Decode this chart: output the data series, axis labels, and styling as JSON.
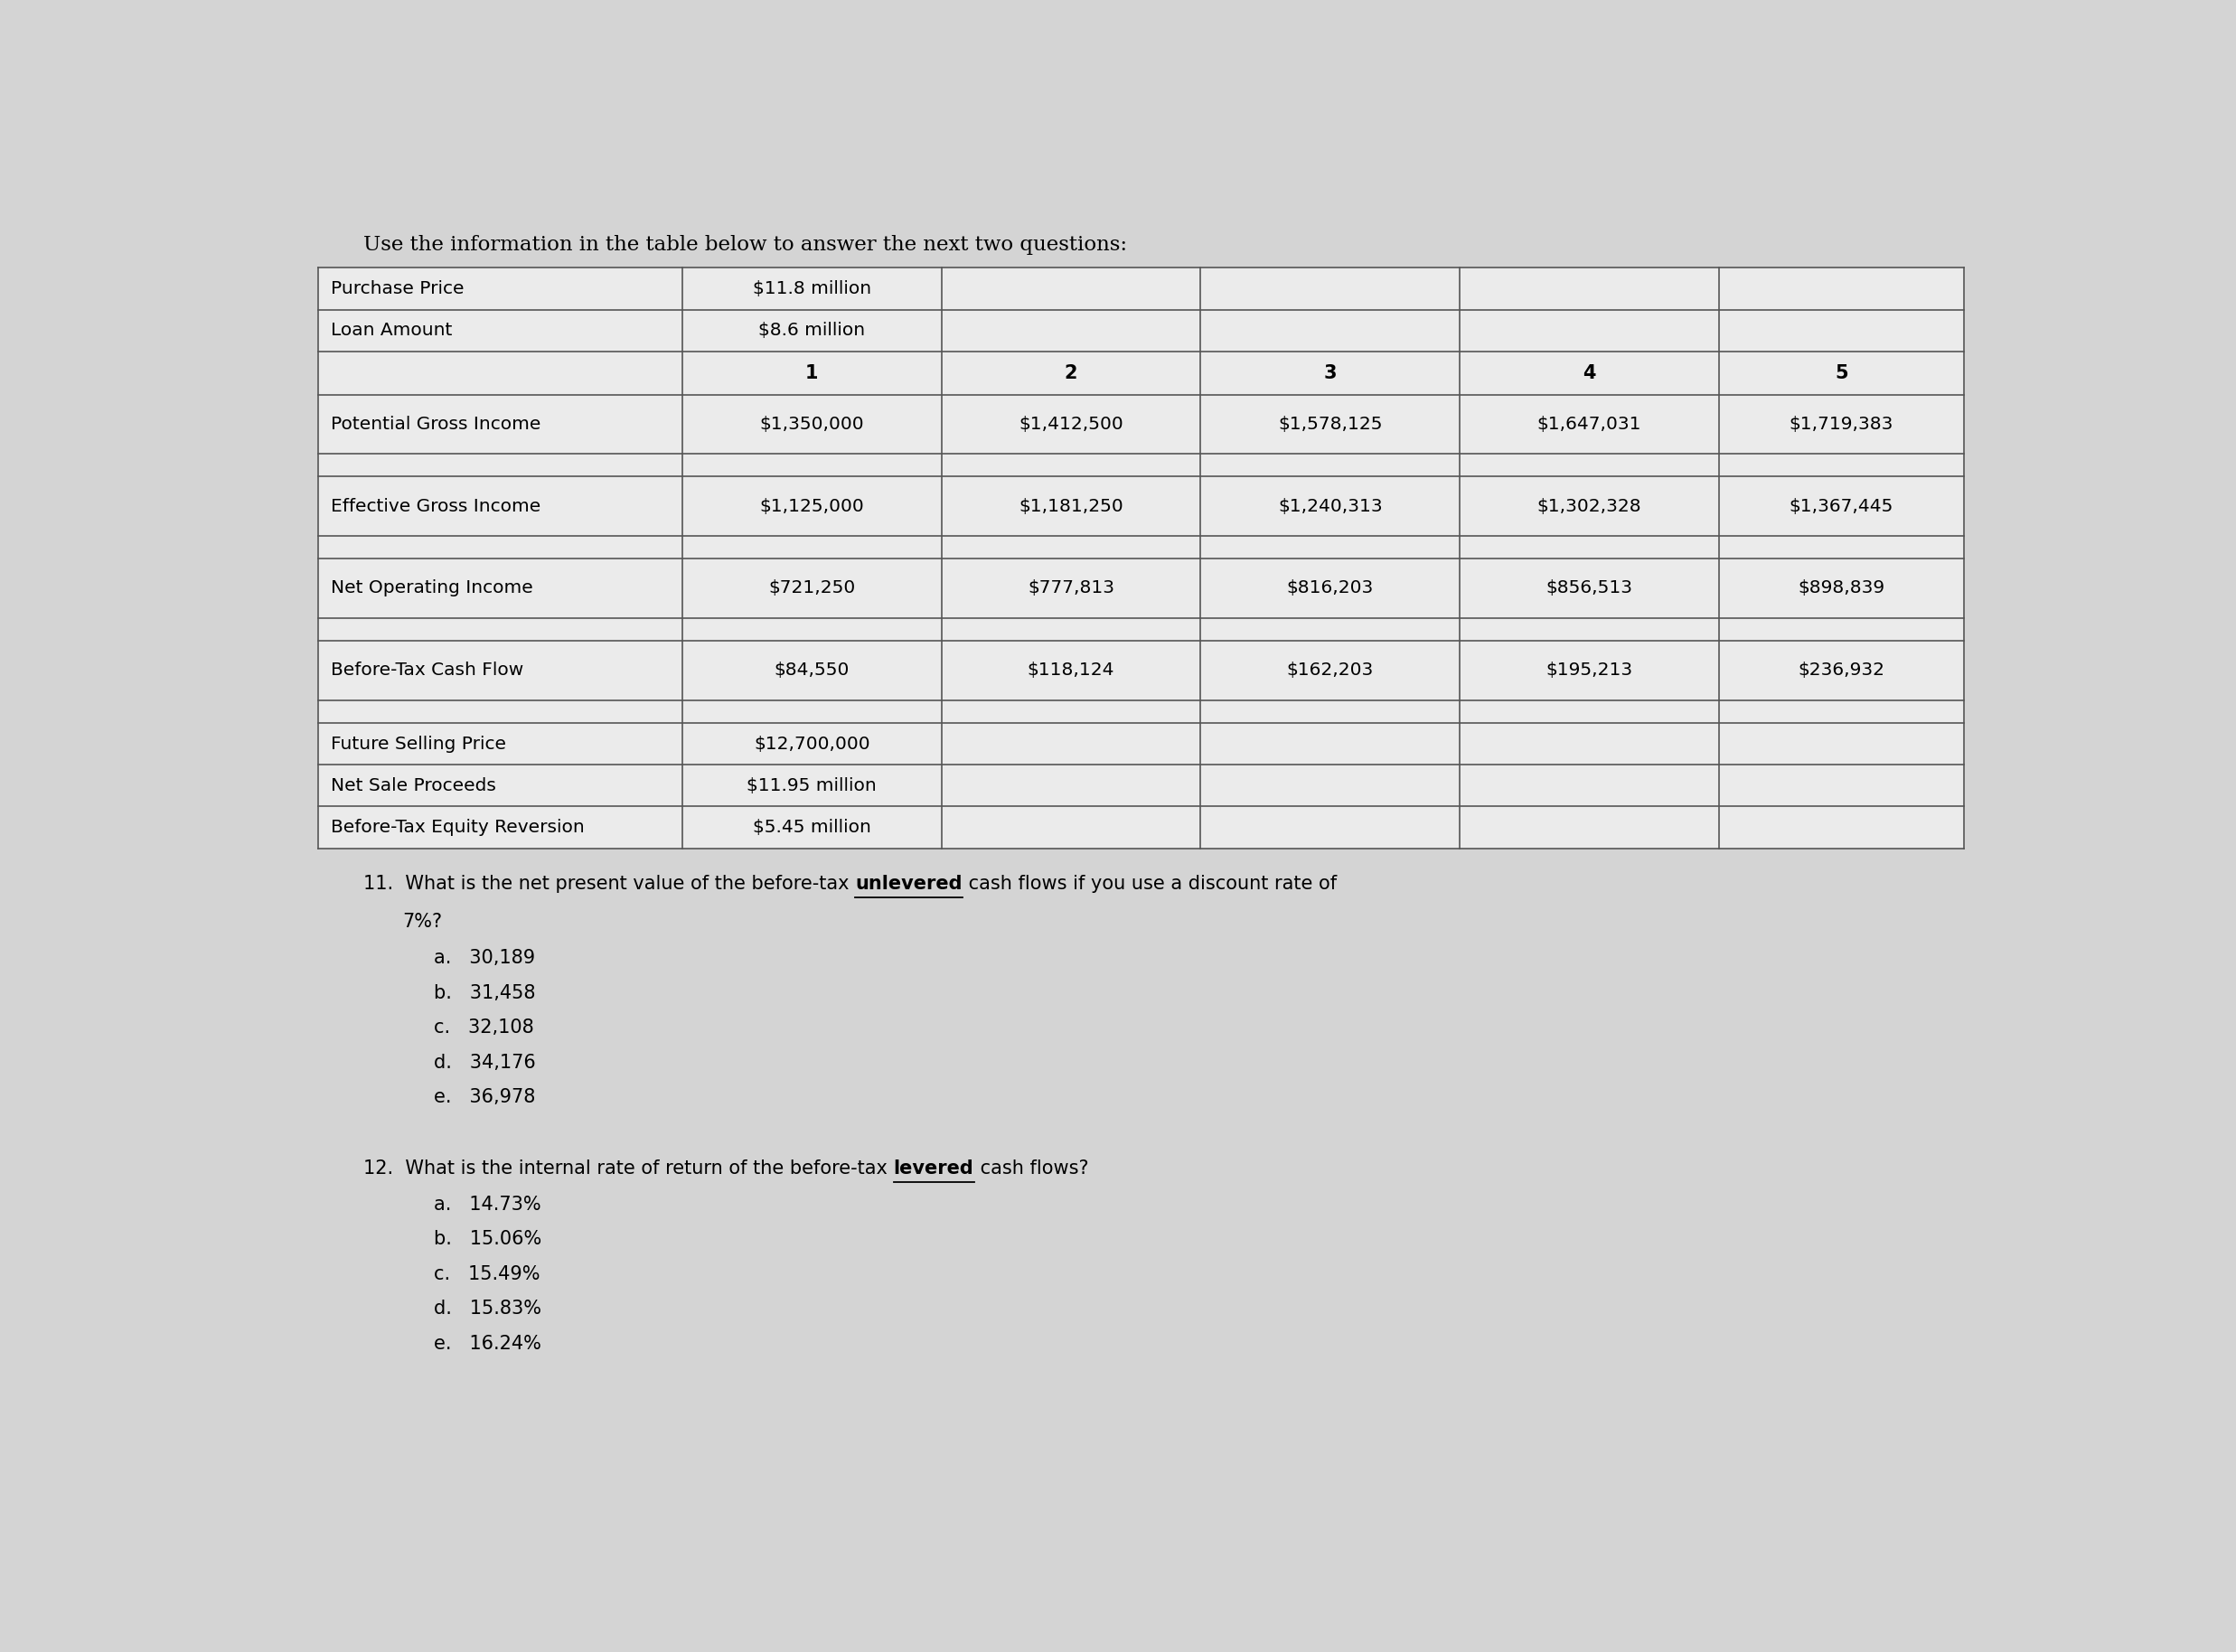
{
  "title": "Use the information in the table below to answer the next two questions:",
  "bg_color": "#d4d4d4",
  "table_bg": "#e8e8e8",
  "table_line_color": "#555555",
  "header_rows": [
    [
      "Purchase Price",
      "$11.8 million",
      "",
      "",
      "",
      ""
    ],
    [
      "Loan Amount",
      "$8.6 million",
      "",
      "",
      "",
      ""
    ],
    [
      "",
      "1",
      "2",
      "3",
      "4",
      "5"
    ],
    [
      "Potential Gross Income",
      "$1,350,000",
      "$1,412,500",
      "$1,578,125",
      "$1,647,031",
      "$1,719,383"
    ],
    [
      "",
      "",
      "",
      "",
      "",
      ""
    ],
    [
      "Effective Gross Income",
      "$1,125,000",
      "$1,181,250",
      "$1,240,313",
      "$1,302,328",
      "$1,367,445"
    ],
    [
      "",
      "",
      "",
      "",
      "",
      ""
    ],
    [
      "Net Operating Income",
      "$721,250",
      "$777,813",
      "$816,203",
      "$856,513",
      "$898,839"
    ],
    [
      "",
      "",
      "",
      "",
      "",
      ""
    ],
    [
      "Before-Tax Cash Flow",
      "$84,550",
      "$118,124",
      "$162,203",
      "$195,213",
      "$236,932"
    ],
    [
      "",
      "",
      "",
      "",
      "",
      ""
    ],
    [
      "Future Selling Price",
      "$12,700,000",
      "",
      "",
      "",
      ""
    ],
    [
      "Net Sale Proceeds",
      "$11.95 million",
      "",
      "",
      "",
      ""
    ],
    [
      "Before-Tax Equity Reversion",
      "$5.45 million",
      "",
      "",
      "",
      ""
    ]
  ],
  "q11_seg1": "11.  What is the net present value of the before-tax ",
  "q11_seg2": "unlevered",
  "q11_seg3": " cash flows if you use a discount rate of",
  "q11_line2": "7%?",
  "q11_options": [
    "a.   30,189",
    "b.   31,458",
    "c.   32,108",
    "d.   34,176",
    "e.   36,978"
  ],
  "q12_seg1": "12.  What is the internal rate of return of the before-tax ",
  "q12_seg2": "levered",
  "q12_seg3": " cash flows?",
  "q12_options": [
    "a.   14.73%",
    "b.   15.06%",
    "c.   15.49%",
    "d.   15.83%",
    "e.   16.24%"
  ]
}
